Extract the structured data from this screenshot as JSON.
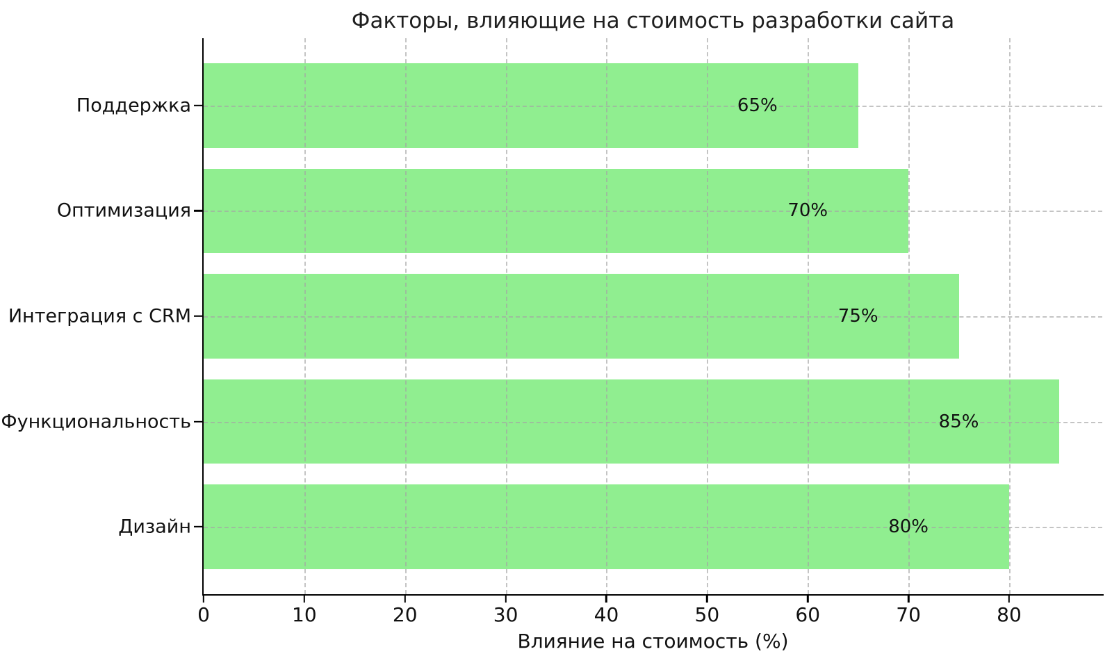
{
  "chart_data": {
    "type": "bar",
    "orientation": "horizontal",
    "title": "Факторы, влияющие на стоимость разработки сайта",
    "xlabel": "Влияние на стоимость (%)",
    "categories": [
      "Поддержка",
      "Оптимизация",
      "Интеграция с CRM",
      "Функциональность",
      "Дизайн"
    ],
    "values": [
      65,
      70,
      75,
      85,
      80
    ],
    "bar_labels": [
      "65%",
      "70%",
      "75%",
      "85%",
      "80%"
    ],
    "bar_label_offset_units": -10,
    "xticks": [
      0,
      10,
      20,
      30,
      40,
      50,
      60,
      70,
      80
    ],
    "xlim": [
      0,
      89.25
    ],
    "bar_color": "#90EE90",
    "grid": "dashed",
    "grid_color": "#a5a5a5",
    "spine_color": "#000000",
    "text_color": "#111111",
    "background": "#ffffff",
    "legend": "none"
  }
}
